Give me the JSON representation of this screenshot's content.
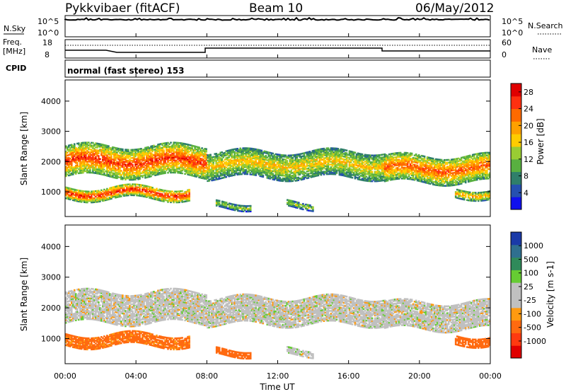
{
  "header": {
    "station": "Pykkvibaer (fitACF)",
    "beam": "Beam 10",
    "date": "06/May/2012"
  },
  "top_panels": {
    "nsky_label": "N.Sky",
    "nsky_ticks": [
      "10^5",
      "10^0"
    ],
    "nsearch_label": "N.Search",
    "freq_label_line1": "Freq.",
    "freq_label_line2": "[MHz]",
    "freq_ticks": [
      "18",
      "8"
    ],
    "nave_ticks": [
      "60",
      "0"
    ],
    "nave_label": "Nave",
    "cpid_label": "CPID",
    "cpid_text": "normal (fast stereo) 153"
  },
  "colors": {
    "power": [
      "#1010ee",
      "#2550b0",
      "#2f7f6a",
      "#58b040",
      "#99cc33",
      "#ffcc00",
      "#ffa000",
      "#ff6a00",
      "#ff3010",
      "#e00000"
    ],
    "velocity": [
      "#e00000",
      "#ff3a10",
      "#ff6a10",
      "#ff9a10",
      "#c0c0c0",
      "#c0c0c0",
      "#66cc33",
      "#2f8a5a",
      "#2f6f8f",
      "#1a3aa8"
    ]
  },
  "chart_data": [
    {
      "type": "heatmap",
      "title": "Power",
      "xlabel": "Time UT",
      "ylabel": "Slant Range [km]",
      "x_ticks": [
        "00:00",
        "04:00",
        "08:00",
        "12:00",
        "16:00",
        "20:00",
        "00:00"
      ],
      "y_ticks": [
        "1000",
        "2000",
        "3000",
        "4000"
      ],
      "xlim_hours": [
        0,
        24
      ],
      "ylim_km": [
        180,
        4700
      ],
      "colorbar_label": "Power [dB]",
      "colorbar_ticks": [
        "4",
        "8",
        "12",
        "16",
        "20",
        "24",
        "28"
      ],
      "colorbar_range": [
        0,
        30
      ],
      "echo_bands": [
        {
          "t": [
            0,
            8
          ],
          "r": [
            1500,
            2500
          ],
          "value": 26
        },
        {
          "t": [
            8,
            18
          ],
          "r": [
            1450,
            2350
          ],
          "value": 18
        },
        {
          "t": [
            18,
            24
          ],
          "r": [
            1300,
            2200
          ],
          "value": 24
        },
        {
          "t": [
            0,
            7
          ],
          "r": [
            750,
            1150
          ],
          "value": 27
        },
        {
          "t": [
            8.5,
            10.5
          ],
          "r": [
            450,
            650
          ],
          "value": 14
        },
        {
          "t": [
            12.5,
            14
          ],
          "r": [
            450,
            650
          ],
          "value": 14
        },
        {
          "t": [
            22,
            24
          ],
          "r": [
            800,
            1100
          ],
          "value": 20
        }
      ]
    },
    {
      "type": "heatmap",
      "title": "Velocity",
      "xlabel": "Time UT",
      "ylabel": "Slant Range [km]",
      "x_ticks": [
        "00:00",
        "04:00",
        "08:00",
        "12:00",
        "16:00",
        "20:00",
        "00:00"
      ],
      "y_ticks": [
        "1000",
        "2000",
        "3000",
        "4000"
      ],
      "xlim_hours": [
        0,
        24
      ],
      "ylim_km": [
        180,
        4700
      ],
      "colorbar_label": "Velocity [m s-1]",
      "colorbar_ticks": [
        "1000",
        "500",
        "100",
        "25",
        "-25",
        "-100",
        "-500",
        "-1000"
      ],
      "echo_bands": [
        {
          "t": [
            0,
            8
          ],
          "r": [
            1500,
            2500
          ],
          "value": 0
        },
        {
          "t": [
            8,
            18
          ],
          "r": [
            1450,
            2350
          ],
          "value": 0
        },
        {
          "t": [
            18,
            24
          ],
          "r": [
            1300,
            2200
          ],
          "value": 0
        },
        {
          "t": [
            0,
            7
          ],
          "r": [
            750,
            1150
          ],
          "value": -120
        },
        {
          "t": [
            8.5,
            10.5
          ],
          "r": [
            450,
            650
          ],
          "value": -150
        },
        {
          "t": [
            12.5,
            14
          ],
          "r": [
            450,
            650
          ],
          "value": 0
        },
        {
          "t": [
            22,
            24
          ],
          "r": [
            800,
            1100
          ],
          "value": -400
        }
      ]
    }
  ]
}
